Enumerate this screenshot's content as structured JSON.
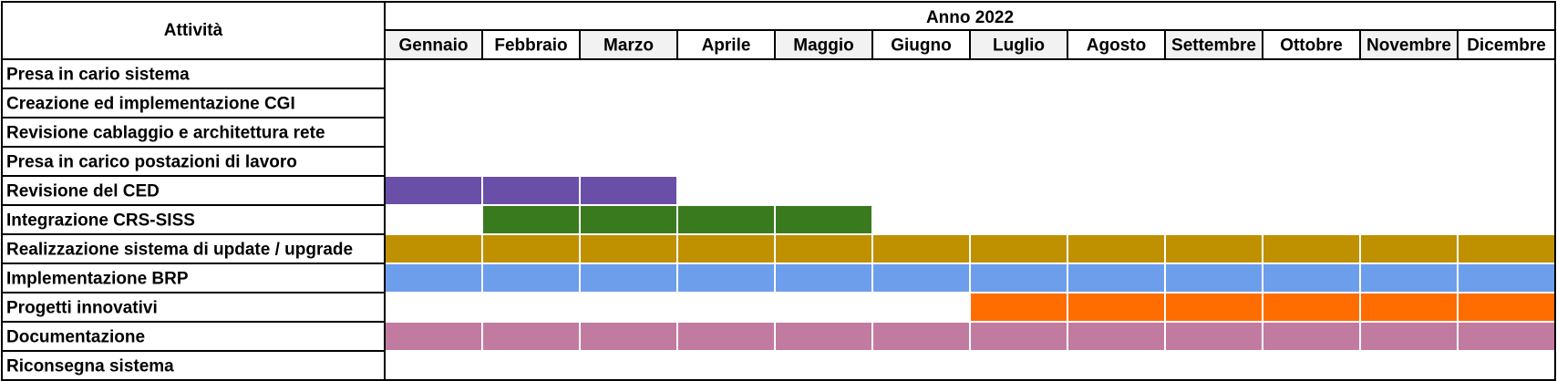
{
  "chart_data": {
    "type": "gantt",
    "activity_header": "Attività",
    "year_header": "Anno 2022",
    "months": [
      "Gennaio",
      "Febbraio",
      "Marzo",
      "Aprile",
      "Maggio",
      "Giugno",
      "Luglio",
      "Agosto",
      "Settembre",
      "Ottobre",
      "Novembre",
      "Dicembre"
    ],
    "month_header_shading": [
      "#f2f2f2",
      "#ffffff",
      "#f2f2f2",
      "#ffffff",
      "#f2f2f2",
      "#ffffff",
      "#f2f2f2",
      "#ffffff",
      "#f2f2f2",
      "#ffffff",
      "#f2f2f2",
      "#ffffff"
    ],
    "tasks": [
      {
        "name": "Presa in cario sistema",
        "start": null,
        "end": null,
        "color": null
      },
      {
        "name": "Creazione ed implementazione CGI",
        "start": null,
        "end": null,
        "color": null
      },
      {
        "name": "Revisione cablaggio e architettura rete",
        "start": null,
        "end": null,
        "color": null
      },
      {
        "name": "Presa in carico postazioni di lavoro",
        "start": null,
        "end": null,
        "color": null
      },
      {
        "name": "Revisione del CED",
        "start": 1,
        "end": 3,
        "color": "#6a4fa8"
      },
      {
        "name": "Integrazione CRS-SISS",
        "start": 2,
        "end": 5,
        "color": "#3a7a1f"
      },
      {
        "name": "Realizzazione sistema di update / upgrade",
        "start": 1,
        "end": 12,
        "color": "#bf9000"
      },
      {
        "name": "Implementazione BRP",
        "start": 1,
        "end": 12,
        "color": "#6d9eeb"
      },
      {
        "name": "Progetti innovativi",
        "start": 7,
        "end": 12,
        "color": "#ff6d01"
      },
      {
        "name": "Documentazione",
        "start": 1,
        "end": 12,
        "color": "#c27ba0"
      },
      {
        "name": "Riconsegna sistema",
        "start": null,
        "end": null,
        "color": null
      }
    ],
    "grid_color": "#000000",
    "cell_divider_color": "#ffffff"
  }
}
